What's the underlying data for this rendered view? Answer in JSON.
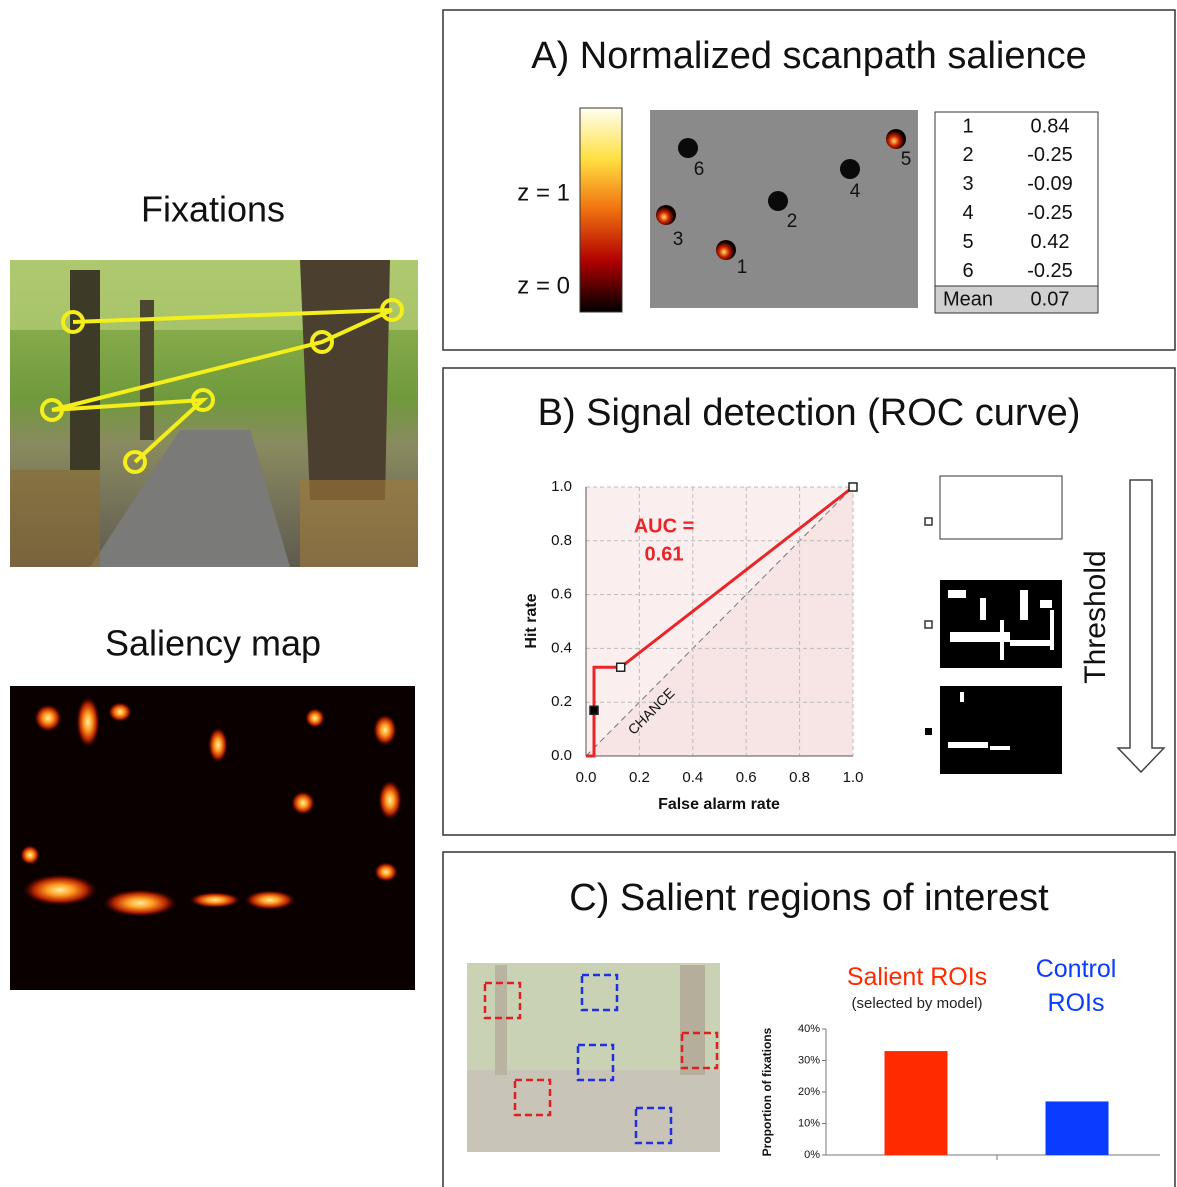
{
  "left": {
    "fixations_title": "Fixations",
    "saliency_title": "Saliency map"
  },
  "panel_a": {
    "title": "A) Normalized scanpath salience",
    "colorbar_top": "z = 1",
    "colorbar_bottom": "z = 0",
    "table": {
      "rows": [
        [
          "1",
          "0.84"
        ],
        [
          "2",
          "-0.25"
        ],
        [
          "3",
          "-0.09"
        ],
        [
          "4",
          "-0.25"
        ],
        [
          "5",
          "0.42"
        ],
        [
          "6",
          "-0.25"
        ]
      ],
      "footer": [
        "Mean",
        "0.07"
      ]
    }
  },
  "panel_b": {
    "title": "B) Signal detection (ROC curve)",
    "threshold_label": "Threshold"
  },
  "panel_c": {
    "title": "C) Salient regions of interest"
  },
  "chart_data": [
    {
      "type": "line",
      "x_label": "False alarm rate",
      "y_label": "Hit rate",
      "x": [
        0,
        0.03,
        0.03,
        0.13,
        1.0
      ],
      "values": [
        0,
        0,
        0.33,
        0.33,
        1.0
      ],
      "color": "#e8262a",
      "markers": {
        "x": [
          0.03,
          0.13,
          1.0
        ],
        "y": [
          0.17,
          0.33,
          1.0
        ],
        "fills": [
          "#000000",
          "#ffffff",
          "#ffffff"
        ]
      },
      "annotations": [
        "AUC =",
        "0.61",
        "CHANCE"
      ],
      "xlim": [
        0,
        1
      ],
      "ylim": [
        0,
        1
      ],
      "xticks": [
        {
          "value": 0,
          "label": "0.0"
        },
        {
          "value": 0.2,
          "label": "0.2"
        },
        {
          "value": 0.4,
          "label": "0.4"
        },
        {
          "value": 0.6,
          "label": "0.6"
        },
        {
          "value": 0.8,
          "label": "0.8"
        },
        {
          "value": 1,
          "label": "1.0"
        }
      ],
      "yticks": [
        {
          "value": 0,
          "label": "0.0"
        },
        {
          "value": 0.2,
          "label": "0.2"
        },
        {
          "value": 0.4,
          "label": "0.4"
        },
        {
          "value": 0.6,
          "label": "0.6"
        },
        {
          "value": 0.8,
          "label": "0.8"
        },
        {
          "value": 1,
          "label": "1.0"
        }
      ],
      "grid": true
    },
    {
      "type": "bar",
      "y_label": "Proportion of fixations",
      "categories": [
        "Salient ROIs",
        "Control ROIs"
      ],
      "category_note": "(selected by model)",
      "values": [
        33,
        17
      ],
      "colors": [
        "#ff2a00",
        "#0a3cff"
      ],
      "ylim": [
        0,
        40
      ],
      "yticks": [
        {
          "value": 0,
          "label": "0%"
        },
        {
          "value": 10,
          "label": "10%"
        },
        {
          "value": 20,
          "label": "20%"
        },
        {
          "value": 30,
          "label": "30%"
        },
        {
          "value": 40,
          "label": "40%"
        }
      ],
      "grid": false
    }
  ]
}
